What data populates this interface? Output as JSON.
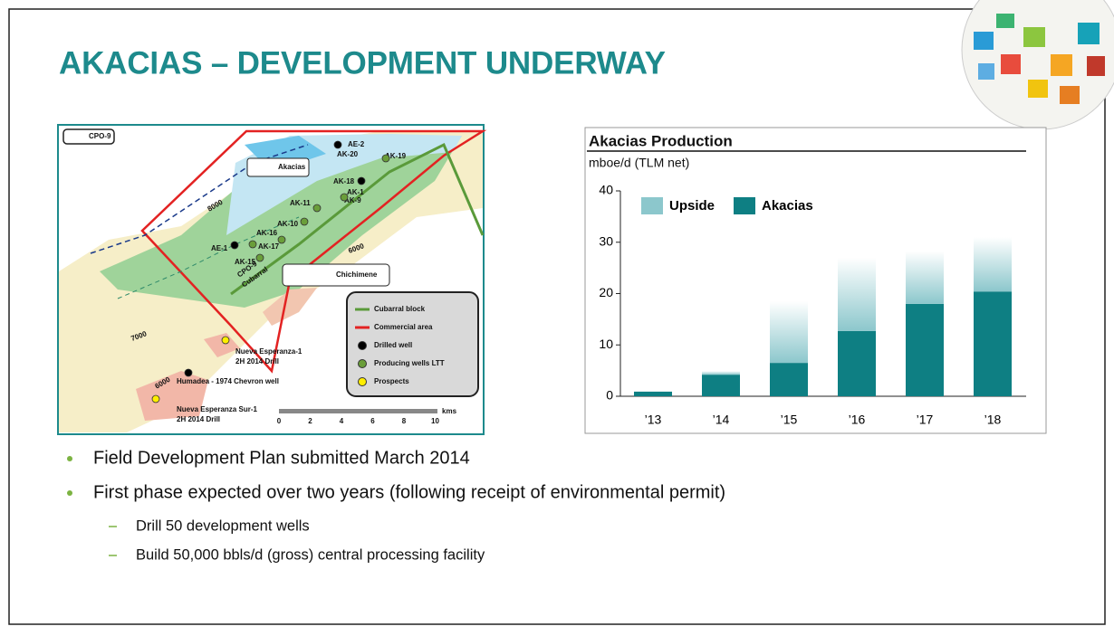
{
  "title": "AKACIAS – DEVELOPMENT UNDERWAY",
  "map": {
    "labels": [
      "CPO-9",
      "Akacias",
      "AE-2",
      "AK-20",
      "AK-19",
      "AK-18",
      "AK-1",
      "AK-9",
      "AK-11",
      "AK-10",
      "AK-16",
      "AE-1",
      "AK-17",
      "AK-15",
      "CPO-9",
      "Cubarral",
      "Chichimene",
      "8000",
      "6000",
      "7000",
      "6000",
      "Nueva Esperanza-1",
      "2H 2014 Drill",
      "Humadea -  1974 Chevron well",
      "Nueva Esperanza Sur-1",
      "2H 2014 Drill"
    ],
    "legend": [
      "Cubarral block",
      "Commercial area",
      "Drilled well",
      "Producing wells LTT",
      "Prospects"
    ],
    "scale_unit": "kms",
    "scale_ticks": [
      "0",
      "2",
      "4",
      "6",
      "8",
      "10"
    ]
  },
  "bullets": [
    {
      "text": "Field Development Plan submitted March 2014",
      "sub": []
    },
    {
      "text": "First phase expected over two years (following receipt of environmental permit)",
      "sub": [
        "Drill 50 development wells",
        "Build 50,000 bbls/d (gross) central processing facility"
      ]
    }
  ],
  "chart_data": {
    "type": "stacked-bar",
    "title": "Akacias Production",
    "y_label": "mboe/d (TLM net)",
    "categories": [
      "’13",
      "’14",
      "’15",
      "’16",
      "’17",
      "’18"
    ],
    "series": [
      {
        "name": "Upside",
        "color": "#8cc7cc",
        "values": [
          0,
          0.7,
          12,
          14.3,
          10.3,
          10.6
        ]
      },
      {
        "name": "Akacias",
        "color": "#0e7f83",
        "values": [
          0.9,
          4.2,
          6.5,
          12.7,
          18,
          20.4
        ]
      }
    ],
    "ylim": [
      0,
      40
    ],
    "yticks": [
      0,
      10,
      20,
      30,
      40
    ],
    "legend": "top-left"
  }
}
